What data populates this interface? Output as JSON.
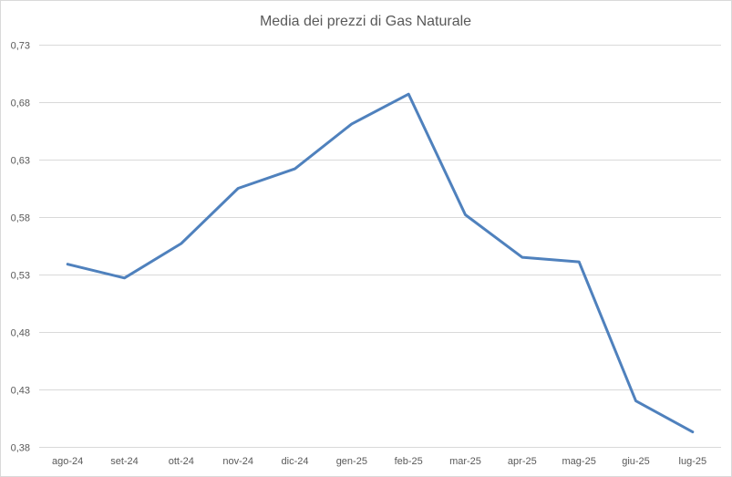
{
  "chart_data": {
    "type": "line",
    "title": "Media dei prezzi di Gas Naturale",
    "xlabel": "",
    "ylabel": "",
    "categories": [
      "ago-24",
      "set-24",
      "ott-24",
      "nov-24",
      "dic-24",
      "gen-25",
      "feb-25",
      "mar-25",
      "apr-25",
      "mag-25",
      "giu-25",
      "lug-25"
    ],
    "series": [
      {
        "values": [
          0.539,
          0.527,
          0.557,
          0.605,
          0.622,
          0.661,
          0.687,
          0.582,
          0.545,
          0.541,
          0.42,
          0.393
        ],
        "color": "#4f81bd"
      }
    ],
    "ylim": [
      0.38,
      0.73
    ],
    "yticks": [
      "0,38",
      "0,43",
      "0,48",
      "0,53",
      "0,58",
      "0,63",
      "0,68",
      "0,73"
    ],
    "grid": true,
    "legend": "none"
  }
}
